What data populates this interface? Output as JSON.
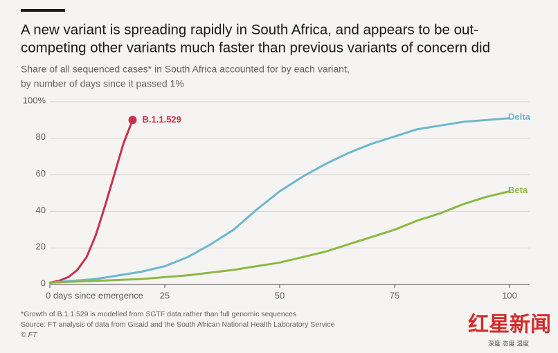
{
  "chart_data": {
    "type": "line",
    "title": [
      "A new variant is spreading rapidly in South Africa, and appears to be out-",
      "competing other variants much faster than previous variants of concern did"
    ],
    "subtitle": [
      "Share of all sequenced cases* in South Africa accounted for by each variant,",
      "by number of days since it passed 1%"
    ],
    "xlim": [
      0,
      100
    ],
    "xticks": [
      {
        "value": 0,
        "label": "0 days since emergence"
      },
      25,
      50,
      75,
      100
    ],
    "ylim": [
      0,
      100
    ],
    "yticks": [
      0,
      20,
      40,
      60,
      80,
      {
        "value": 100,
        "label": "100%"
      }
    ],
    "grid": true,
    "series": [
      {
        "name": "B.1.1.529",
        "color": "#c93150",
        "x": [
          0,
          2,
          4,
          6,
          8,
          10,
          12,
          14,
          16,
          18
        ],
        "values": [
          1,
          2,
          4,
          8,
          15,
          27,
          43,
          60,
          77,
          90
        ]
      },
      {
        "name": "Delta",
        "color": "#6bb8cf",
        "x": [
          0,
          10,
          20,
          25,
          30,
          35,
          40,
          45,
          50,
          55,
          60,
          65,
          70,
          75,
          80,
          85,
          90,
          95,
          100
        ],
        "values": [
          1,
          3,
          7,
          10,
          15,
          22,
          30,
          41,
          51,
          59,
          66,
          72,
          77,
          81,
          85,
          87,
          89,
          90,
          91
        ]
      },
      {
        "name": "Beta",
        "color": "#8db842",
        "x": [
          0,
          10,
          20,
          25,
          30,
          40,
          50,
          55,
          60,
          65,
          70,
          75,
          80,
          85,
          90,
          95,
          100
        ],
        "values": [
          1,
          2,
          3,
          4,
          5,
          8,
          12,
          15,
          18,
          22,
          26,
          30,
          35,
          39,
          44,
          48,
          51
        ]
      }
    ],
    "footnotes": [
      "*Growth of B.1.1.529 is modelled from SGTF data rather than full genomic sequences",
      "Source: FT analysis of data from Gisaid and the South African National Health Laboratory Service",
      "© FT"
    ],
    "watermark": {
      "logo": "红星新闻",
      "tagline": "深度 态度 温度"
    }
  }
}
